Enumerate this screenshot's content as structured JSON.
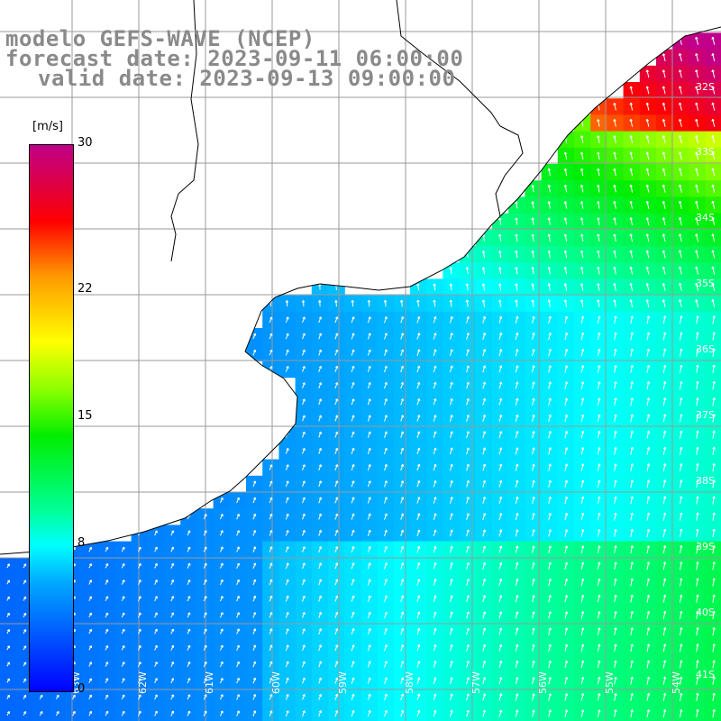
{
  "header": {
    "line1": "modelo GEFS-WAVE (NCEP)",
    "line2": "forecast date: 2023-09-11 06:00:00",
    "line3": "valid date: 2023-09-13 09:00:00"
  },
  "legend": {
    "units": "[m/s]",
    "ticks": [
      {
        "label": "30",
        "value": 30
      },
      {
        "label": "22",
        "value": 22
      },
      {
        "label": "15",
        "value": 15
      },
      {
        "label": "8",
        "value": 8
      },
      {
        "label": "0",
        "value": 0
      }
    ],
    "range": [
      0,
      30
    ]
  },
  "map": {
    "type": "wind-speed field with direction arrows",
    "lat_labels": [
      "32S",
      "33S",
      "34S",
      "35S",
      "36S",
      "37S",
      "38S",
      "39S",
      "40S",
      "41S"
    ],
    "lon_labels": [
      "63W",
      "62W",
      "61W",
      "60W",
      "59W",
      "58W",
      "57W",
      "56W",
      "55W",
      "54W"
    ]
  },
  "chart_data": {
    "type": "heatmap",
    "title": "modelo GEFS-WAVE (NCEP)",
    "colorbar_units": "[m/s]",
    "colorbar_range": [
      0,
      30
    ],
    "colorbar_ticks": [
      0,
      8,
      15,
      22,
      30
    ]
  }
}
